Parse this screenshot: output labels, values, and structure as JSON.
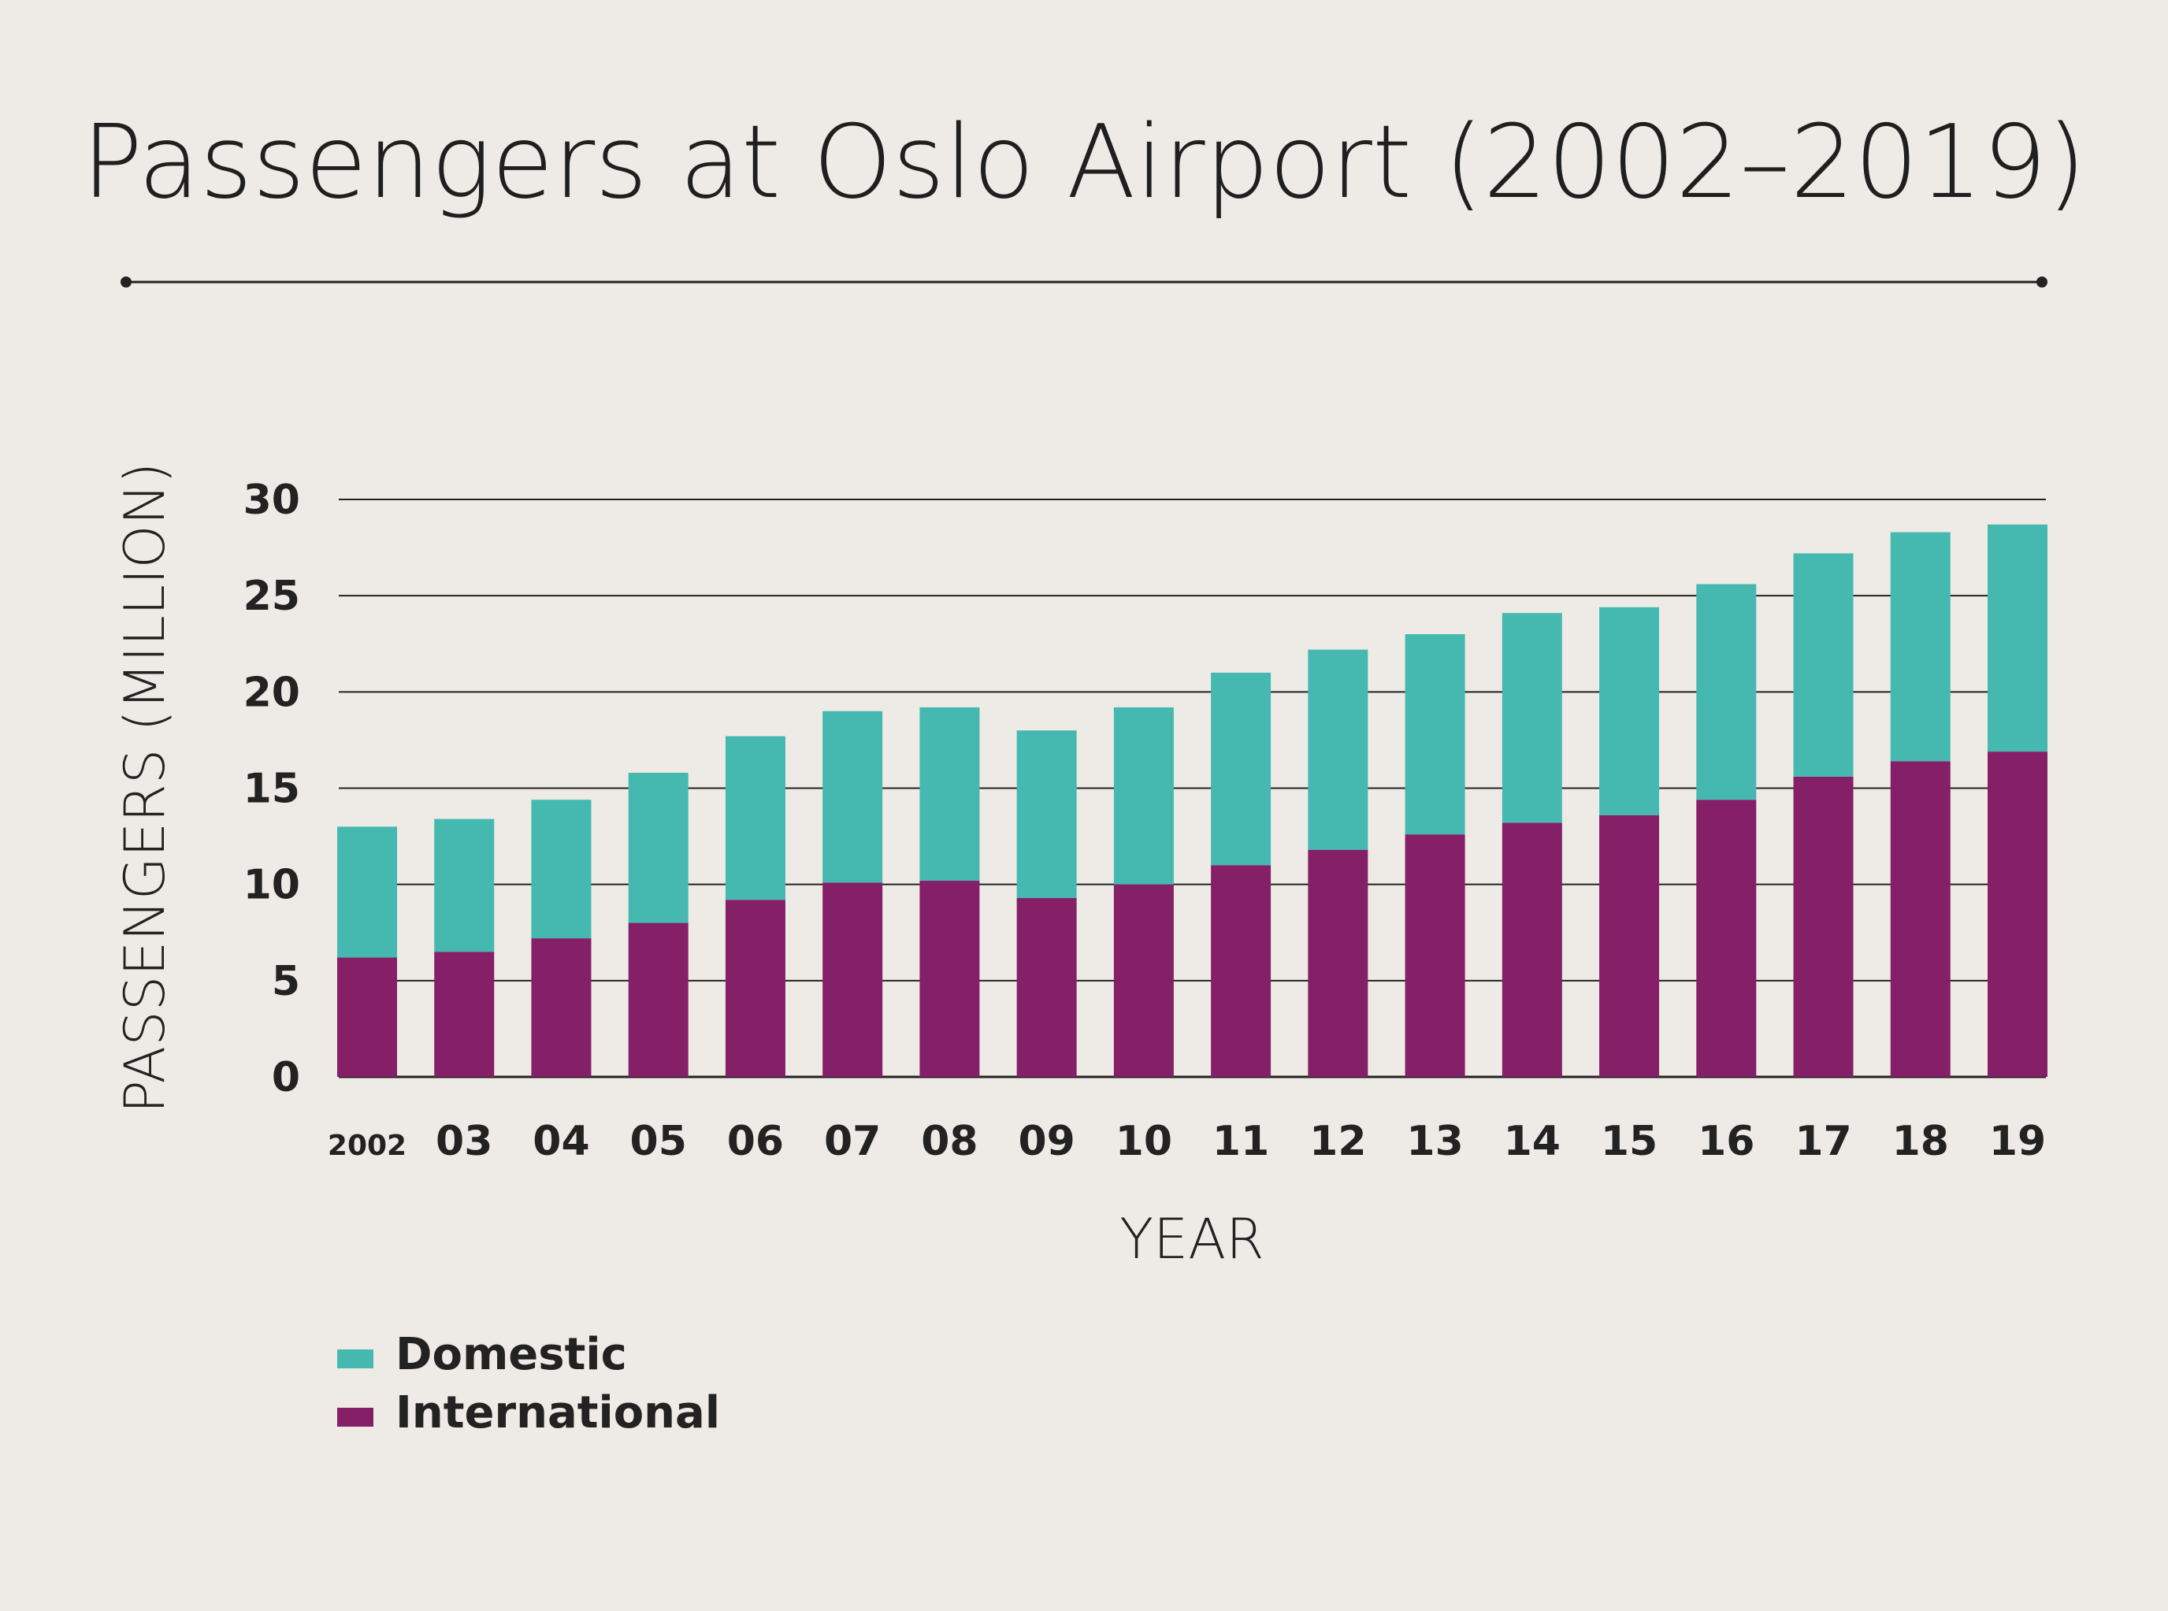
{
  "chart_data": {
    "type": "bar",
    "stacked": true,
    "title": "Passengers at Oslo Airport (2002–2019)",
    "xlabel": "YEAR",
    "ylabel": "PASSENGERS (MILLION)",
    "ylim": [
      0,
      30
    ],
    "yticks": [
      0,
      5,
      10,
      15,
      20,
      25,
      30
    ],
    "grid": true,
    "legend_position": "bottom-left",
    "categories": [
      "2002",
      "03",
      "04",
      "05",
      "06",
      "07",
      "08",
      "09",
      "10",
      "11",
      "12",
      "13",
      "14",
      "15",
      "16",
      "17",
      "18",
      "19"
    ],
    "series": [
      {
        "name": "International",
        "color": "#841f68",
        "values": [
          6.2,
          6.5,
          7.2,
          8.0,
          9.2,
          10.1,
          10.2,
          9.3,
          10.0,
          11.0,
          11.8,
          12.6,
          13.2,
          13.6,
          14.4,
          15.6,
          16.4,
          16.9
        ]
      },
      {
        "name": "Domestic",
        "color": "#45b9b0",
        "values": [
          6.8,
          6.9,
          7.2,
          7.8,
          8.5,
          8.9,
          9.0,
          8.7,
          9.2,
          10.0,
          10.4,
          10.4,
          10.9,
          10.8,
          11.2,
          11.6,
          11.9,
          11.8
        ]
      }
    ],
    "legend": [
      "Domestic",
      "International"
    ]
  }
}
